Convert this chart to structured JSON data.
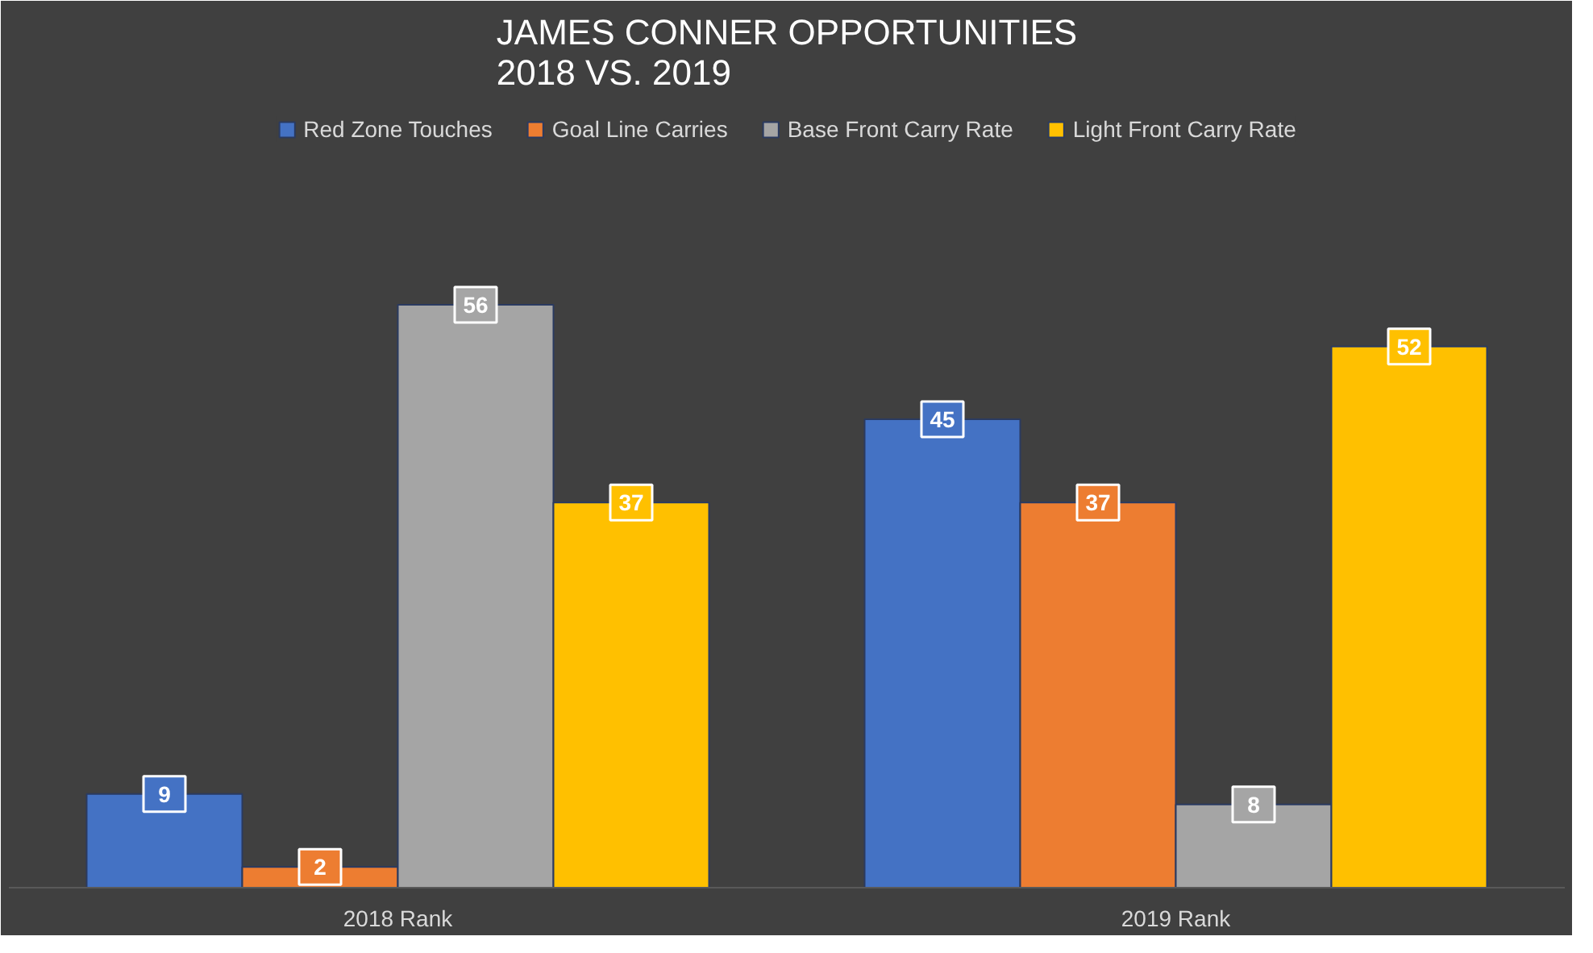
{
  "chart_data": {
    "type": "bar",
    "title": "JAMES CONNER OPPORTUNITIES\n2018 VS. 2019",
    "categories": [
      "2018 Rank",
      "2019 Rank"
    ],
    "series": [
      {
        "name": "Red Zone Touches",
        "color": "#4472c4",
        "values": [
          9,
          45
        ]
      },
      {
        "name": "Goal Line Carries",
        "color": "#ed7d31",
        "values": [
          2,
          37
        ]
      },
      {
        "name": "Base Front Carry Rate",
        "color": "#a5a5a5",
        "values": [
          56,
          8
        ]
      },
      {
        "name": "Light Front Carry Rate",
        "color": "#ffc000",
        "values": [
          37,
          52
        ]
      }
    ],
    "data_labels": true,
    "legend": "top",
    "grid": false
  }
}
